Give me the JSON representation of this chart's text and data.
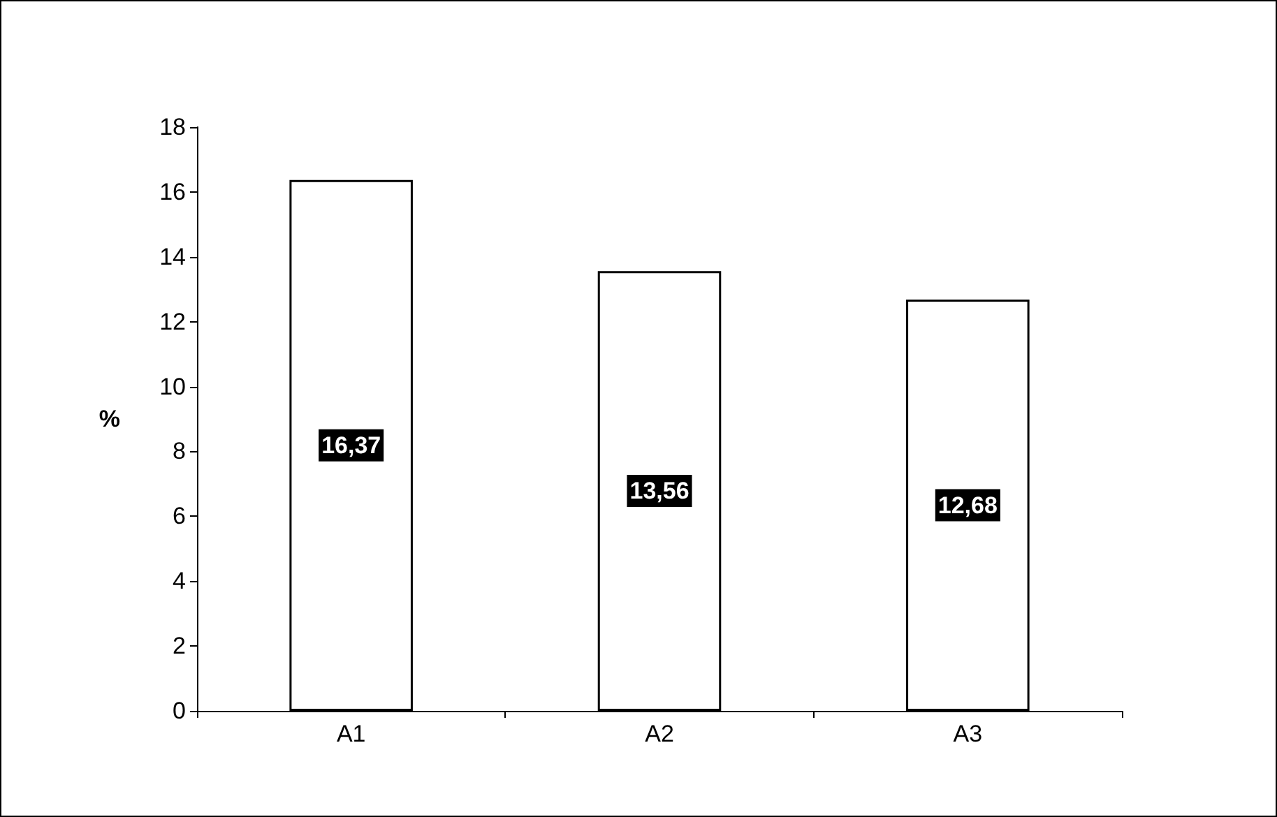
{
  "chart_data": {
    "type": "bar",
    "ylabel": "%",
    "categories": [
      "A1",
      "A2",
      "A3"
    ],
    "values": [
      16.37,
      13.56,
      12.68
    ],
    "value_labels": [
      "16,37",
      "13,56",
      "12,68"
    ],
    "colors": [
      "#ffffff",
      "#ffffff",
      "#ffffff"
    ],
    "ylim": [
      0,
      18
    ],
    "yticks": [
      0,
      2,
      4,
      6,
      8,
      10,
      12,
      14,
      16,
      18
    ],
    "grid": false
  }
}
